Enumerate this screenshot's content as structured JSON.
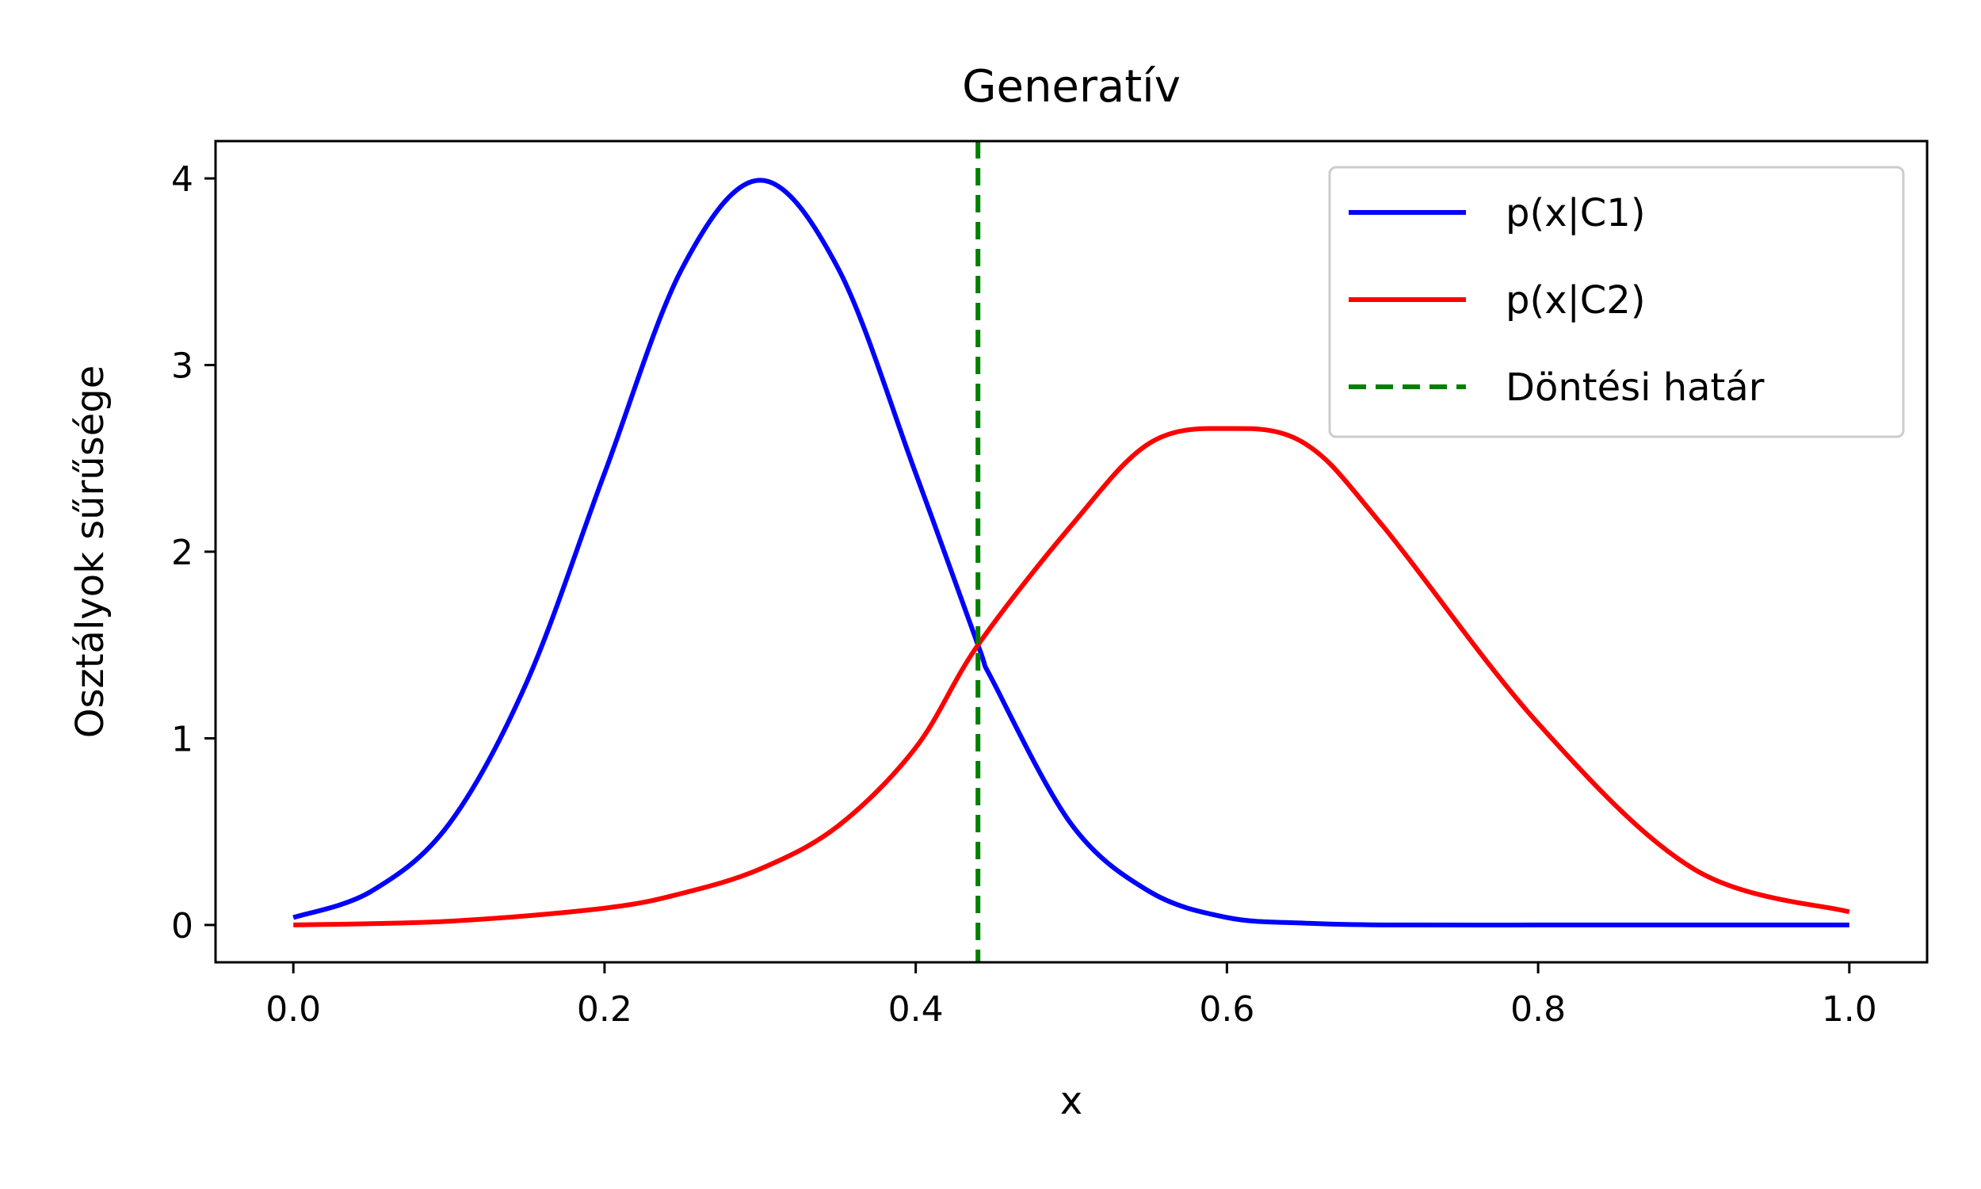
{
  "chart_data": {
    "type": "line",
    "title": "Generatív",
    "xlabel": "x",
    "ylabel": "Osztályok sűrűsége",
    "xlim": [
      -0.05,
      1.05
    ],
    "ylim": [
      -0.2,
      4.2
    ],
    "xticks": [
      "0.0",
      "0.2",
      "0.4",
      "0.6",
      "0.8",
      "1.0"
    ],
    "yticks": [
      "0",
      "1",
      "2",
      "3",
      "4"
    ],
    "legend_position": "top-right",
    "grid": false,
    "series": [
      {
        "name": "p(x|C1)",
        "color": "#0000ff",
        "style": "solid",
        "x": [
          0.0,
          0.05,
          0.1,
          0.15,
          0.2,
          0.25,
          0.3,
          0.35,
          0.4,
          0.44,
          0.45,
          0.5,
          0.55,
          0.6,
          0.65,
          0.7,
          0.8,
          0.9,
          1.0
        ],
        "values": [
          0.04,
          0.18,
          0.54,
          1.3,
          2.42,
          3.52,
          3.99,
          3.52,
          2.42,
          1.5,
          1.3,
          0.54,
          0.18,
          0.04,
          0.01,
          0.0,
          0.0,
          0.0,
          0.0
        ]
      },
      {
        "name": "p(x|C2)",
        "color": "#ff0000",
        "style": "solid",
        "x": [
          0.0,
          0.1,
          0.2,
          0.25,
          0.3,
          0.35,
          0.4,
          0.44,
          0.5,
          0.55,
          0.6,
          0.65,
          0.7,
          0.8,
          0.9,
          1.0
        ],
        "values": [
          0.0,
          0.02,
          0.09,
          0.17,
          0.3,
          0.53,
          0.95,
          1.5,
          2.14,
          2.58,
          2.66,
          2.58,
          2.14,
          1.08,
          0.3,
          0.07
        ]
      }
    ],
    "vlines": [
      {
        "name": "Döntési határ",
        "x": 0.44,
        "color": "#008000",
        "style": "dashed"
      }
    ]
  }
}
